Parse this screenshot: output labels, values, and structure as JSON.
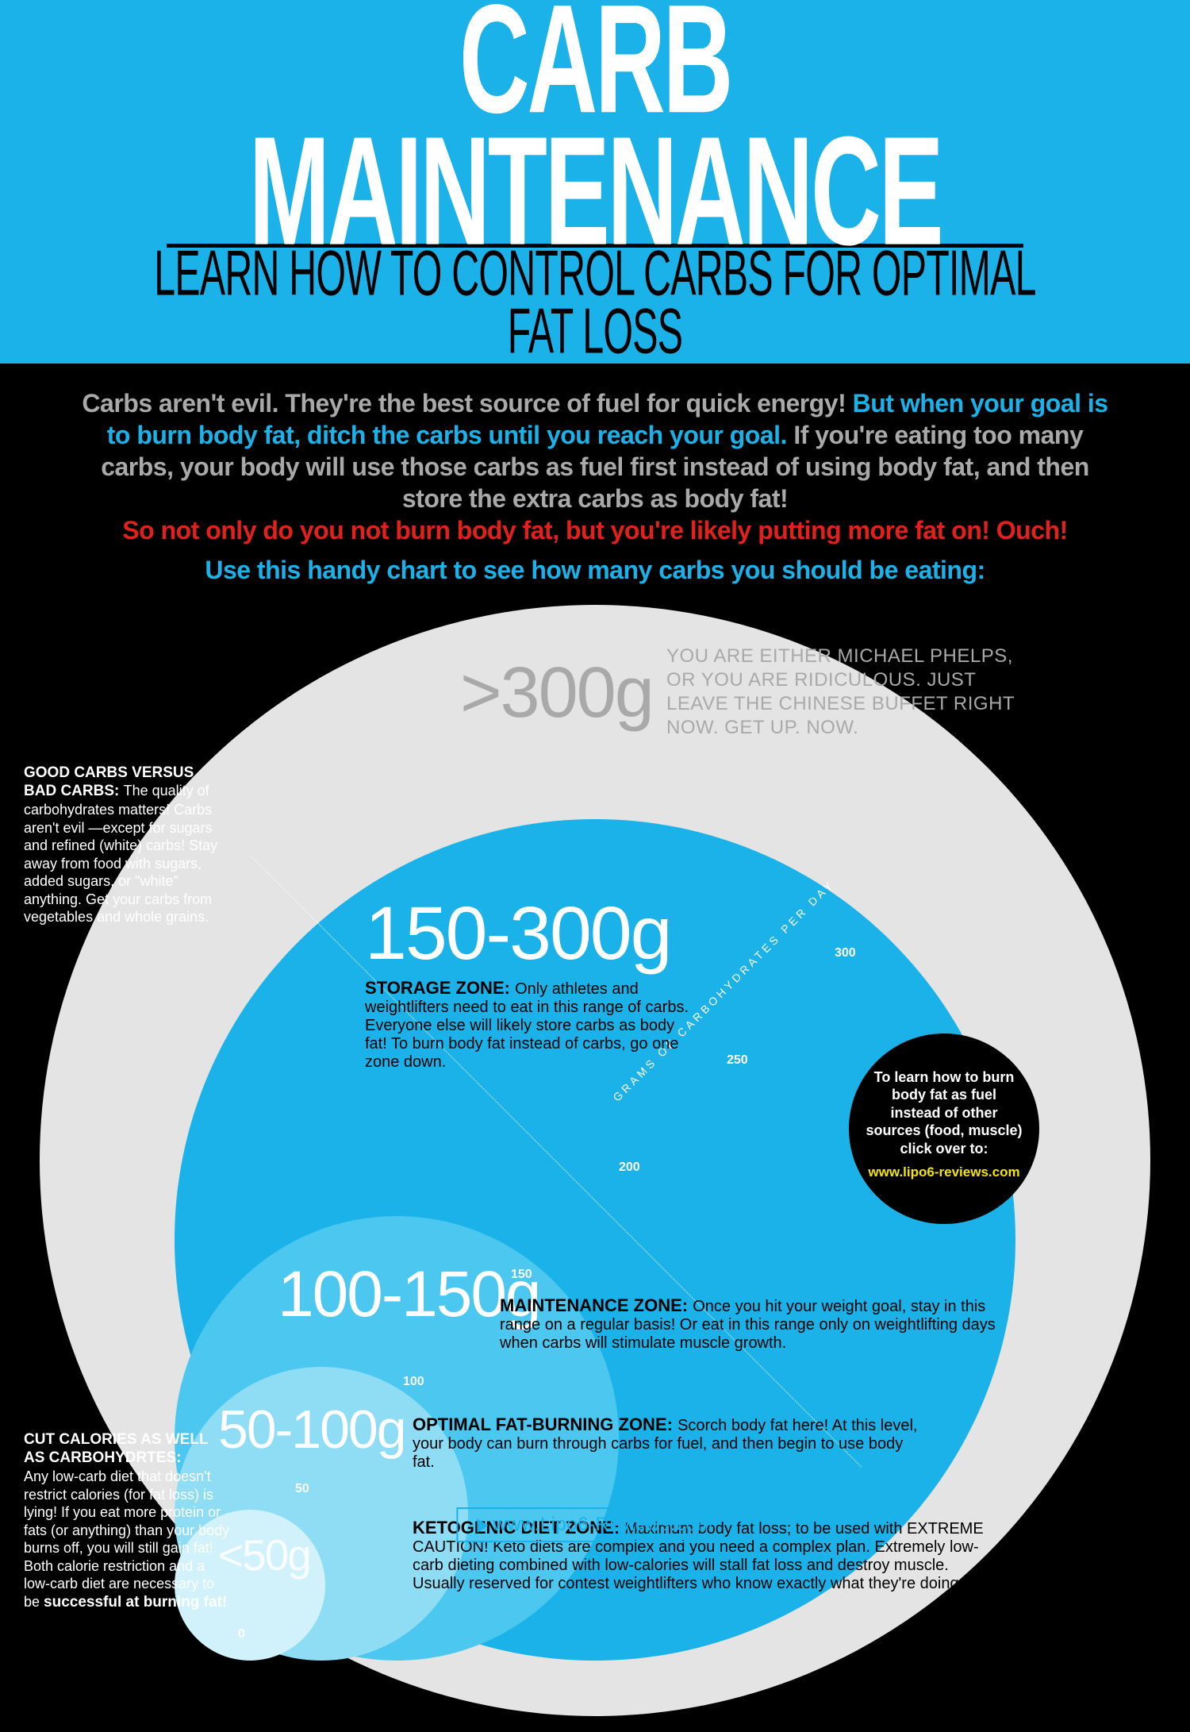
{
  "colors": {
    "background": "#000000",
    "primary": "#1ab2e8",
    "outer_circle": "#e4e4e4",
    "storage_circle": "#1ab2e8",
    "maintenance_circle": "#4bc7f0",
    "optimal_circle": "#8eddf5",
    "keto_circle": "#d1f1fb",
    "text_gray": "#a9a9a9",
    "text_red": "#e2211c",
    "cta_url": "#f3e600"
  },
  "header": {
    "title": "CARB MAINTENANCE",
    "subtitle": "LEARN HOW TO CONTROL CARBS FOR OPTIMAL FAT LOSS"
  },
  "intro": {
    "p1": "Carbs aren't evil. They're the best source of fuel for quick energy! ",
    "p2": "But when your goal is to burn body fat, ditch the carbs until you reach your goal. ",
    "p3": "If you're eating too many carbs, your body will use those carbs as fuel first instead of using body fat, and then store the extra carbs as body fat!",
    "p4": "So not only do you not burn body fat, but you're likely putting more fat on! Ouch!",
    "p5": "Use this handy chart to see how many carbs you should be eating:"
  },
  "axis": {
    "label": "GRAMS OF CARBOHYDRATES PER DAY",
    "ticks": {
      "t0": "0",
      "t50": "50",
      "t100": "100",
      "t150": "150",
      "t200": "200",
      "t250": "250",
      "t300": "300"
    }
  },
  "zones": {
    "over300": {
      "range": ">300g",
      "body": "YOU ARE EITHER MICHAEL PHELPS, OR YOU ARE RIDICULOUS. JUST LEAVE THE CHINESE BUFFET RIGHT NOW. GET UP. NOW."
    },
    "storage": {
      "range": "150-300g",
      "head": "STORAGE ZONE: ",
      "body": "Only athletes and weightlifters need to eat in this range of carbs. Everyone else will likely store carbs as body fat! To burn body fat instead of carbs, go one zone down."
    },
    "maintenance": {
      "range": "100-150g",
      "head": "MAINTENANCE ZONE: ",
      "body": "Once you hit your weight goal, stay in this range on a regular basis! Or eat in this range only on weightlifting days when carbs will stimulate muscle growth."
    },
    "optimal": {
      "range": "50-100g",
      "head": "OPTIMAL FAT-BURNING ZONE: ",
      "body": "Scorch body fat here! At this level, your body can burn through carbs for fuel, and then begin to use body fat."
    },
    "keto": {
      "range": "<50g",
      "head": "KETOGENIC DIET ZONE: ",
      "body": "Maximum body fat loss; to be used with EXTREME CAUTION! Keto diets are complex and you need a complex plan. Extremely low-carb dieting combined with low-calories will stall fat loss and destroy muscle. Usually reserved for contest weightlifters who know exactly what they're doing."
    }
  },
  "sidebar": {
    "good_carbs": {
      "head": "GOOD CARBS VERSUS BAD CARBS: ",
      "body": "The quality of carbohydrates matters! Carbs aren't evil —except for sugars and refined (white) carbs! Stay away from food with sugars, added sugars, or \"white\" anything. Get your carbs from vegetables and whole grains."
    },
    "cut_calories": {
      "head": "CUT CALORIES AS WELL AS CARBOHYDRTES:",
      "body": "Any low-carb diet that doesn't restrict calories (for fat loss) is lying! If you eat more protein or fats (or anything) than your body burns off, you will still gain fat! Both calorie restriction and a low-carb diet are necessary to be ",
      "tail": "successful at burning fat!"
    }
  },
  "cta": {
    "text": "To learn how to burn body fat as fuel instead of other sources (food, muscle) click over to:",
    "url": "www.lipo6-reviews.com"
  },
  "footer": {
    "url": "www.Lipo6-Reviews.com"
  }
}
